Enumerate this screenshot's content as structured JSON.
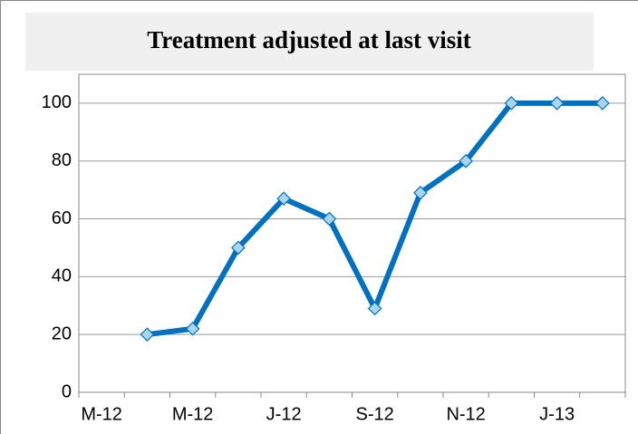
{
  "chart_data": {
    "type": "line",
    "title": "Treatment adjusted at last visit",
    "categories": [
      "M-12",
      null,
      "M-12",
      null,
      "J-12",
      null,
      "S-12",
      null,
      "N-12",
      null,
      "J-13",
      null
    ],
    "series": [
      {
        "name": null,
        "color": "#0070c0",
        "marker_color": "#a9d6ee",
        "values": [
          null,
          20,
          22,
          50,
          67,
          60,
          29,
          69,
          80,
          100,
          100,
          100
        ]
      }
    ],
    "ylim": [
      0,
      110
    ],
    "yticks": [
      0,
      20,
      40,
      60,
      80,
      100
    ],
    "grid": true
  }
}
